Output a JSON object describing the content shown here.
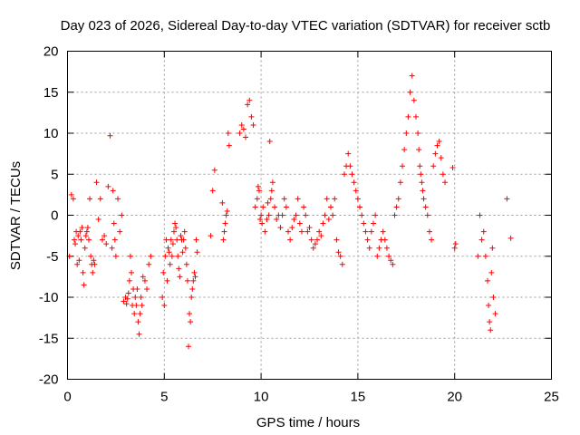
{
  "chart_data": {
    "type": "scatter",
    "title": "Day 023 of 2026, Sidereal Day-to-day VTEC variation (SDTVAR) for receiver sctb",
    "xlabel": "GPS time / hours",
    "ylabel": "SDTVAR / TECUs",
    "xlim": [
      0,
      25
    ],
    "ylim": [
      -20,
      20
    ],
    "xticks": [
      0,
      5,
      10,
      15,
      20,
      25
    ],
    "yticks": [
      -20,
      -15,
      -10,
      -5,
      0,
      5,
      10,
      15,
      20
    ],
    "grid": true,
    "marker": "+",
    "color": "#ff0000",
    "series": [
      {
        "name": "SDTVAR",
        "x": [
          0.1,
          0.2,
          0.3,
          0.35,
          0.4,
          0.45,
          0.5,
          0.55,
          0.6,
          0.65,
          0.7,
          0.75,
          0.8,
          0.85,
          0.9,
          0.95,
          1.0,
          1.05,
          1.1,
          1.15,
          1.2,
          1.25,
          1.3,
          1.35,
          1.4,
          1.5,
          1.6,
          1.7,
          1.8,
          1.9,
          2.0,
          2.1,
          2.2,
          2.3,
          2.35,
          2.4,
          2.45,
          2.5,
          2.6,
          2.7,
          2.8,
          2.9,
          3.0,
          3.05,
          3.1,
          3.15,
          3.2,
          3.25,
          3.3,
          3.35,
          3.4,
          3.45,
          3.5,
          3.55,
          3.6,
          3.65,
          3.7,
          3.75,
          3.8,
          3.85,
          3.9,
          4.0,
          4.1,
          4.2,
          4.3,
          4.9,
          4.95,
          5.0,
          5.05,
          5.1,
          5.15,
          5.2,
          5.25,
          5.3,
          5.35,
          5.4,
          5.45,
          5.5,
          5.55,
          5.6,
          5.65,
          5.7,
          5.75,
          5.8,
          5.85,
          5.9,
          5.95,
          6.0,
          6.05,
          6.1,
          6.15,
          6.2,
          6.25,
          6.3,
          6.35,
          6.4,
          6.45,
          6.5,
          6.55,
          6.6,
          6.65,
          6.7,
          7.4,
          7.5,
          7.6,
          8.0,
          8.05,
          8.1,
          8.15,
          8.2,
          8.25,
          8.3,
          8.35,
          8.9,
          9.0,
          9.1,
          9.2,
          9.3,
          9.4,
          9.5,
          9.6,
          9.7,
          9.8,
          9.85,
          9.9,
          9.95,
          10.0,
          10.05,
          10.1,
          10.2,
          10.3,
          10.35,
          10.4,
          10.45,
          10.5,
          10.55,
          10.6,
          10.7,
          10.8,
          10.9,
          11.0,
          11.1,
          11.2,
          11.3,
          11.4,
          11.5,
          11.6,
          11.7,
          11.8,
          11.9,
          12.0,
          12.1,
          12.2,
          12.3,
          12.4,
          12.5,
          12.6,
          12.7,
          12.8,
          12.9,
          13.0,
          13.1,
          13.2,
          13.3,
          13.4,
          13.5,
          13.6,
          13.7,
          13.8,
          13.9,
          14.0,
          14.1,
          14.2,
          14.3,
          14.4,
          14.5,
          14.6,
          14.7,
          14.8,
          14.9,
          15.0,
          15.1,
          15.2,
          15.3,
          15.4,
          15.5,
          15.6,
          15.7,
          15.8,
          15.9,
          16.0,
          16.1,
          16.2,
          16.3,
          16.4,
          16.5,
          16.6,
          16.7,
          16.8,
          16.9,
          17.0,
          17.1,
          17.2,
          17.3,
          17.4,
          17.5,
          17.6,
          17.7,
          17.8,
          17.9,
          18.0,
          18.1,
          18.15,
          18.2,
          18.25,
          18.3,
          18.35,
          18.4,
          18.5,
          18.6,
          18.7,
          18.8,
          18.9,
          19.0,
          19.1,
          19.2,
          19.3,
          19.4,
          19.5,
          19.9,
          20.0,
          20.05,
          21.2,
          21.3,
          21.4,
          21.5,
          21.6,
          21.7,
          21.75,
          21.8,
          21.85,
          21.9,
          21.95,
          22.0,
          22.1,
          22.7,
          22.9
        ],
        "y": [
          -5,
          2.5,
          2,
          -3,
          -3.5,
          -2,
          -6,
          -2.5,
          -5.5,
          -2,
          -3,
          -1.5,
          -7,
          -8.5,
          -4,
          -2.5,
          -2,
          -1.5,
          -3,
          2,
          -5,
          -6,
          -7,
          -5.5,
          -6,
          4,
          -0.5,
          2,
          -3,
          -2.5,
          -3.5,
          3.5,
          9.7,
          -4,
          3,
          -1,
          -3,
          -5,
          2,
          -2,
          0,
          -10.5,
          -10,
          -10.8,
          -10.2,
          -9.5,
          -8,
          -5,
          -7,
          -11,
          -9,
          -12,
          -10,
          -11,
          -9,
          -13,
          -14.5,
          -12,
          -10,
          -11,
          -7.5,
          -8,
          -9,
          -6,
          -5,
          -10,
          -7,
          -11,
          -5,
          -3,
          -8,
          -4,
          -4.5,
          -6,
          -3,
          -5,
          -3.5,
          -2,
          -1,
          -1.5,
          -3,
          -5,
          -6.5,
          -7.5,
          -2.5,
          -3,
          -4.5,
          -3,
          -2,
          -4,
          -6,
          -8,
          -16,
          -12,
          -13,
          -10,
          -9,
          -8,
          -7,
          -7.5,
          -3,
          -4.5,
          -2.5,
          3,
          5.5,
          1.5,
          -3,
          -2,
          -1,
          0,
          0.5,
          10,
          8.5,
          10,
          11,
          10.5,
          9.5,
          13.5,
          14,
          12,
          11,
          1,
          2,
          3.5,
          3,
          -0.5,
          0,
          -1,
          1,
          -2,
          -0.5,
          1.5,
          0,
          9,
          2,
          3,
          4,
          1,
          -0.5,
          0,
          -1.5,
          0,
          2,
          1,
          -2,
          -3,
          -1.5,
          -0.5,
          0,
          2,
          -1,
          -2,
          1,
          0,
          -2,
          -1.5,
          -3,
          -4,
          -3.5,
          -3,
          -2,
          -2.5,
          -1,
          0,
          2,
          -0.5,
          1,
          0,
          2,
          -3,
          -4.5,
          -5,
          -6,
          5,
          6,
          7.5,
          6,
          5,
          4,
          3,
          2,
          1,
          0,
          -1,
          -2,
          -3,
          -4,
          -2,
          -1,
          0,
          -5,
          -4,
          -3,
          -2,
          -3,
          -4,
          -5,
          -5.5,
          -6,
          0,
          1,
          2,
          4,
          6,
          8,
          10,
          12,
          15,
          17,
          14,
          12,
          10,
          8,
          6,
          5,
          4,
          3,
          2,
          1,
          0,
          -2,
          -3,
          6,
          7.5,
          8.5,
          9,
          7,
          5,
          4,
          5.8,
          -4,
          -3.5,
          -5,
          0,
          -3,
          -2,
          -5,
          -8,
          -11,
          -13,
          -14,
          -7,
          -4,
          -10,
          -12,
          2,
          -2.8
        ]
      }
    ]
  }
}
